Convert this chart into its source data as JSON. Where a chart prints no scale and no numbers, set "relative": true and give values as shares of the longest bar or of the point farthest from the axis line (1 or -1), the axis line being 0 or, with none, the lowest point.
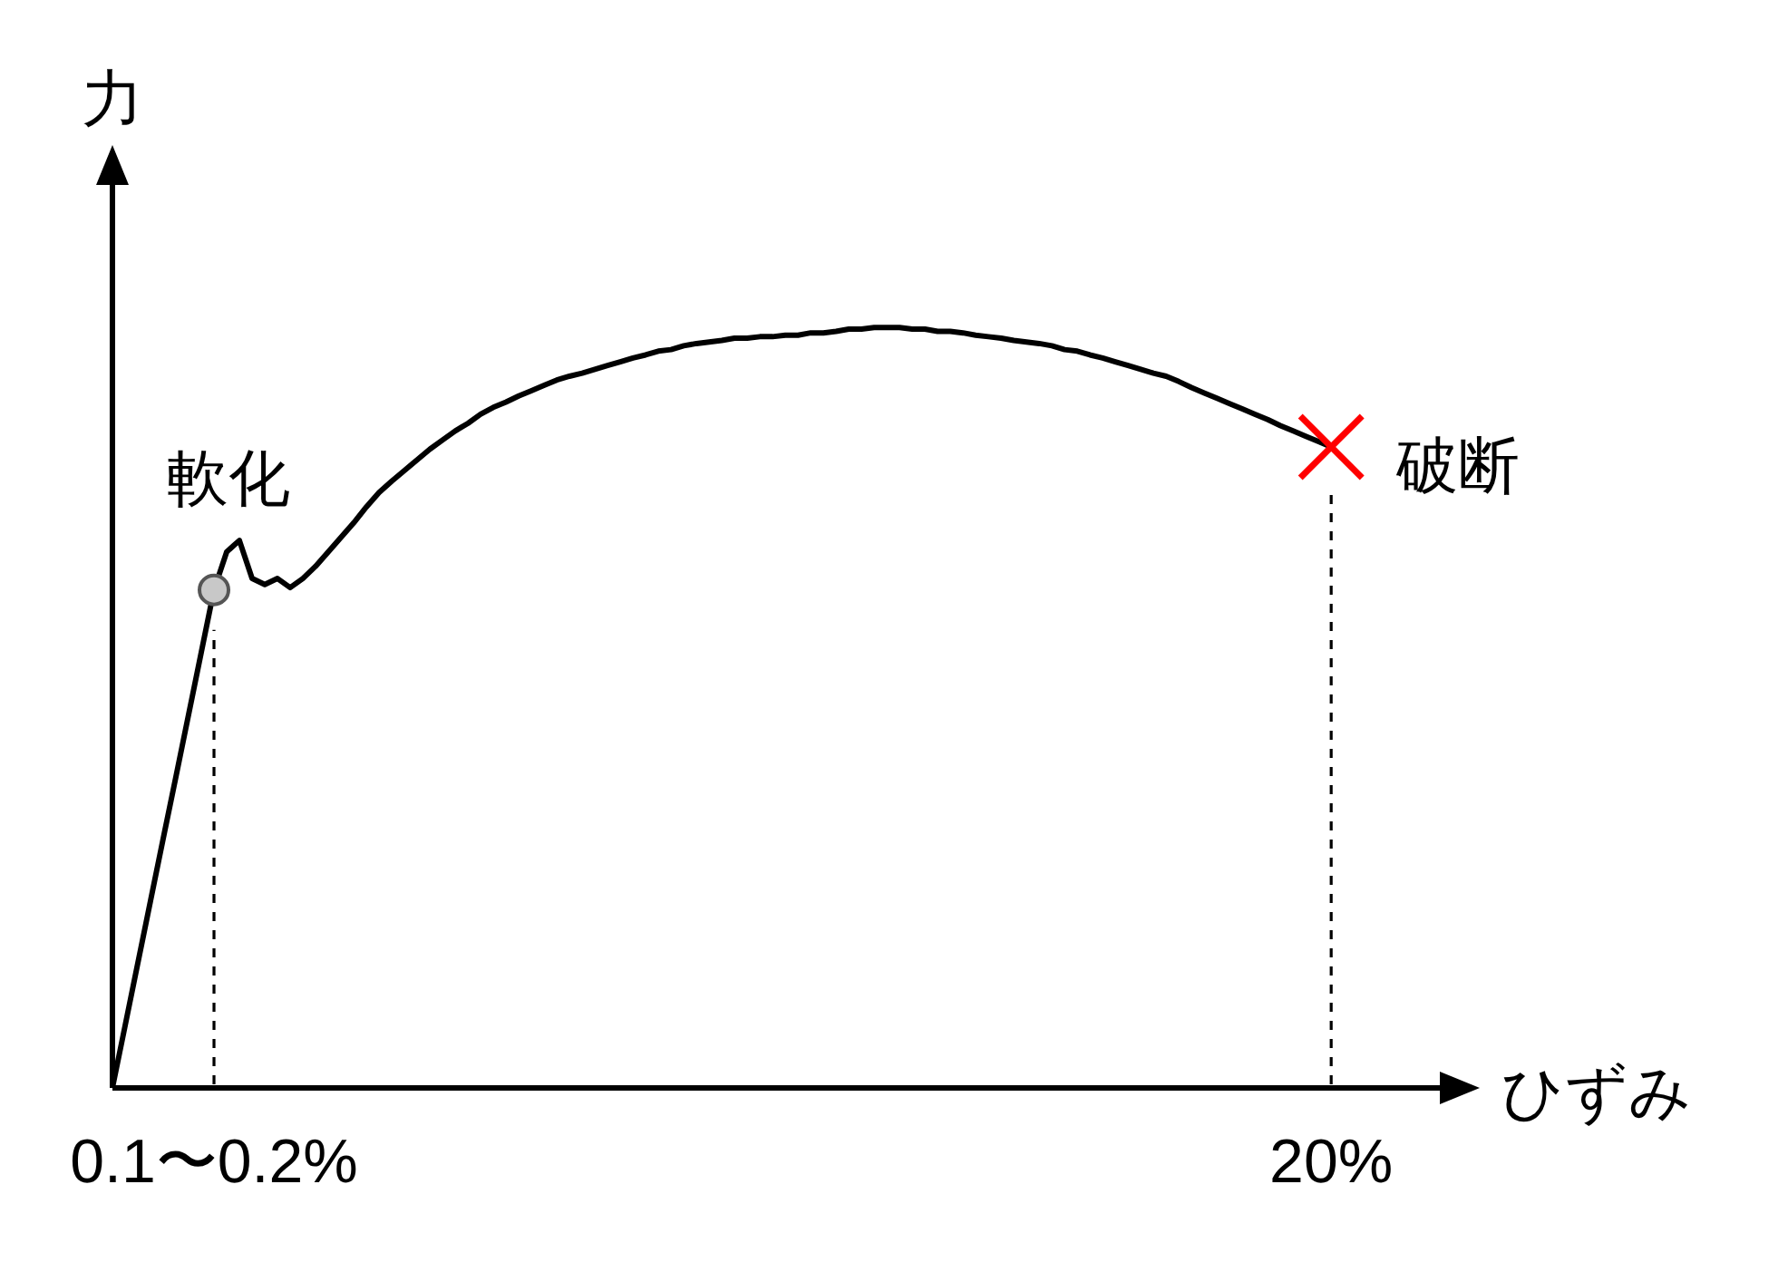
{
  "chart_data": {
    "type": "line",
    "relative": true,
    "xlabel": "ひずみ",
    "ylabel": "力",
    "tick_labels": "x",
    "categories": [
      null,
      null,
      null,
      null,
      null,
      null,
      null,
      null,
      "0.1〜0.2%",
      null,
      null,
      null,
      null,
      null,
      null,
      null,
      null,
      null,
      null,
      null,
      null,
      null,
      null,
      null,
      null,
      null,
      null,
      null,
      null,
      null,
      null,
      null,
      null,
      null,
      null,
      null,
      null,
      null,
      null,
      null,
      null,
      null,
      null,
      null,
      null,
      null,
      null,
      null,
      null,
      null,
      null,
      null,
      null,
      null,
      null,
      null,
      null,
      null,
      null,
      null,
      null,
      null,
      null,
      null,
      null,
      null,
      null,
      null,
      null,
      null,
      null,
      null,
      null,
      null,
      null,
      null,
      null,
      null,
      null,
      null,
      null,
      null,
      null,
      null,
      null,
      null,
      null,
      null,
      null,
      null,
      null,
      null,
      null,
      null,
      null,
      null,
      "20%",
      null,
      null,
      null,
      null,
      null,
      null,
      null,
      null,
      null,
      null,
      null
    ],
    "series": [
      {
        "color": "#000000",
        "values": [
          0,
          0.082,
          0.164,
          0.246,
          0.328,
          0.409,
          0.491,
          0.573,
          0.655,
          0.705,
          0.72,
          0.67,
          0.662,
          0.67,
          0.658,
          0.67,
          0.686,
          0.705,
          0.724,
          0.743,
          0.764,
          0.783,
          0.798,
          0.812,
          0.826,
          0.84,
          0.852,
          0.864,
          0.874,
          0.886,
          0.895,
          0.902,
          0.91,
          0.917,
          0.924,
          0.931,
          0.936,
          0.94,
          0.945,
          0.95,
          0.955,
          0.96,
          0.964,
          0.969,
          0.971,
          0.976,
          0.979,
          0.981,
          0.983,
          0.986,
          0.986,
          0.988,
          0.988,
          0.99,
          0.99,
          0.993,
          0.993,
          0.995,
          0.998,
          0.998,
          1.0,
          1.0,
          1.0,
          0.998,
          0.998,
          0.995,
          0.995,
          0.993,
          0.99,
          0.988,
          0.986,
          0.983,
          0.981,
          0.979,
          0.976,
          0.971,
          0.969,
          0.964,
          0.96,
          0.955,
          0.95,
          0.945,
          0.94,
          0.936,
          0.929,
          0.921,
          0.914,
          0.907,
          0.9,
          0.893,
          0.886,
          0.879,
          0.871,
          0.864,
          0.857,
          0.85,
          0.843,
          null,
          null,
          null,
          null,
          null,
          null,
          null,
          null,
          null,
          null,
          null
        ]
      },
      {
        "type": "scatter",
        "color": "#c8c8c8",
        "marker": "circle",
        "x": [
          "0.1〜0.2%"
        ],
        "values": [
          0.655
        ]
      },
      {
        "type": "scatter",
        "color": "#ff0000",
        "marker": "cross",
        "x": [
          "20%"
        ],
        "values": [
          0.843
        ]
      }
    ],
    "ref_lines": [
      {
        "axis": "x",
        "value": "0.1〜0.2%",
        "line_style": "dashed",
        "color": "#000000"
      },
      {
        "axis": "x",
        "value": "20%",
        "line_style": "dashed",
        "color": "#000000"
      }
    ],
    "annotations": [
      {
        "text": "軟化",
        "x": "0.1〜0.2%",
        "y": 0.655
      },
      {
        "text": "破断",
        "x": "20%",
        "y": 0.843
      }
    ]
  }
}
